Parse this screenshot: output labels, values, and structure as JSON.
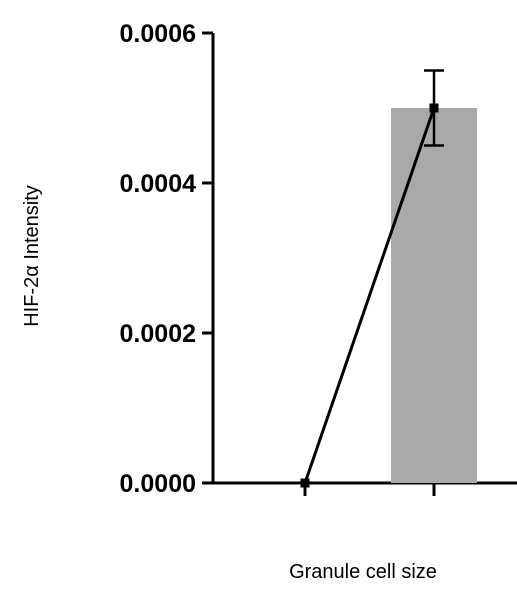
{
  "chart_data": {
    "type": "bar",
    "xlabel": "Granule cell size",
    "ylabel": "HIF-2α Intensity",
    "ylim": [
      0,
      0.0006
    ],
    "yticks": [
      "0.0000",
      "0.0002",
      "0.0004",
      "0.0006"
    ],
    "ytick_values": [
      0,
      0.0002,
      0.0004,
      0.0006
    ],
    "categories": [
      "",
      ""
    ],
    "bars": [
      {
        "category_index": 1,
        "value": 0.0005,
        "color": "#a9a9a9"
      }
    ],
    "line": {
      "points": [
        {
          "category_index": 0,
          "value": 0.0,
          "error": 0.0
        },
        {
          "category_index": 1,
          "value": 0.0005,
          "error": 5e-05
        }
      ],
      "color": "#000000"
    },
    "grid": false,
    "legend": "none"
  }
}
